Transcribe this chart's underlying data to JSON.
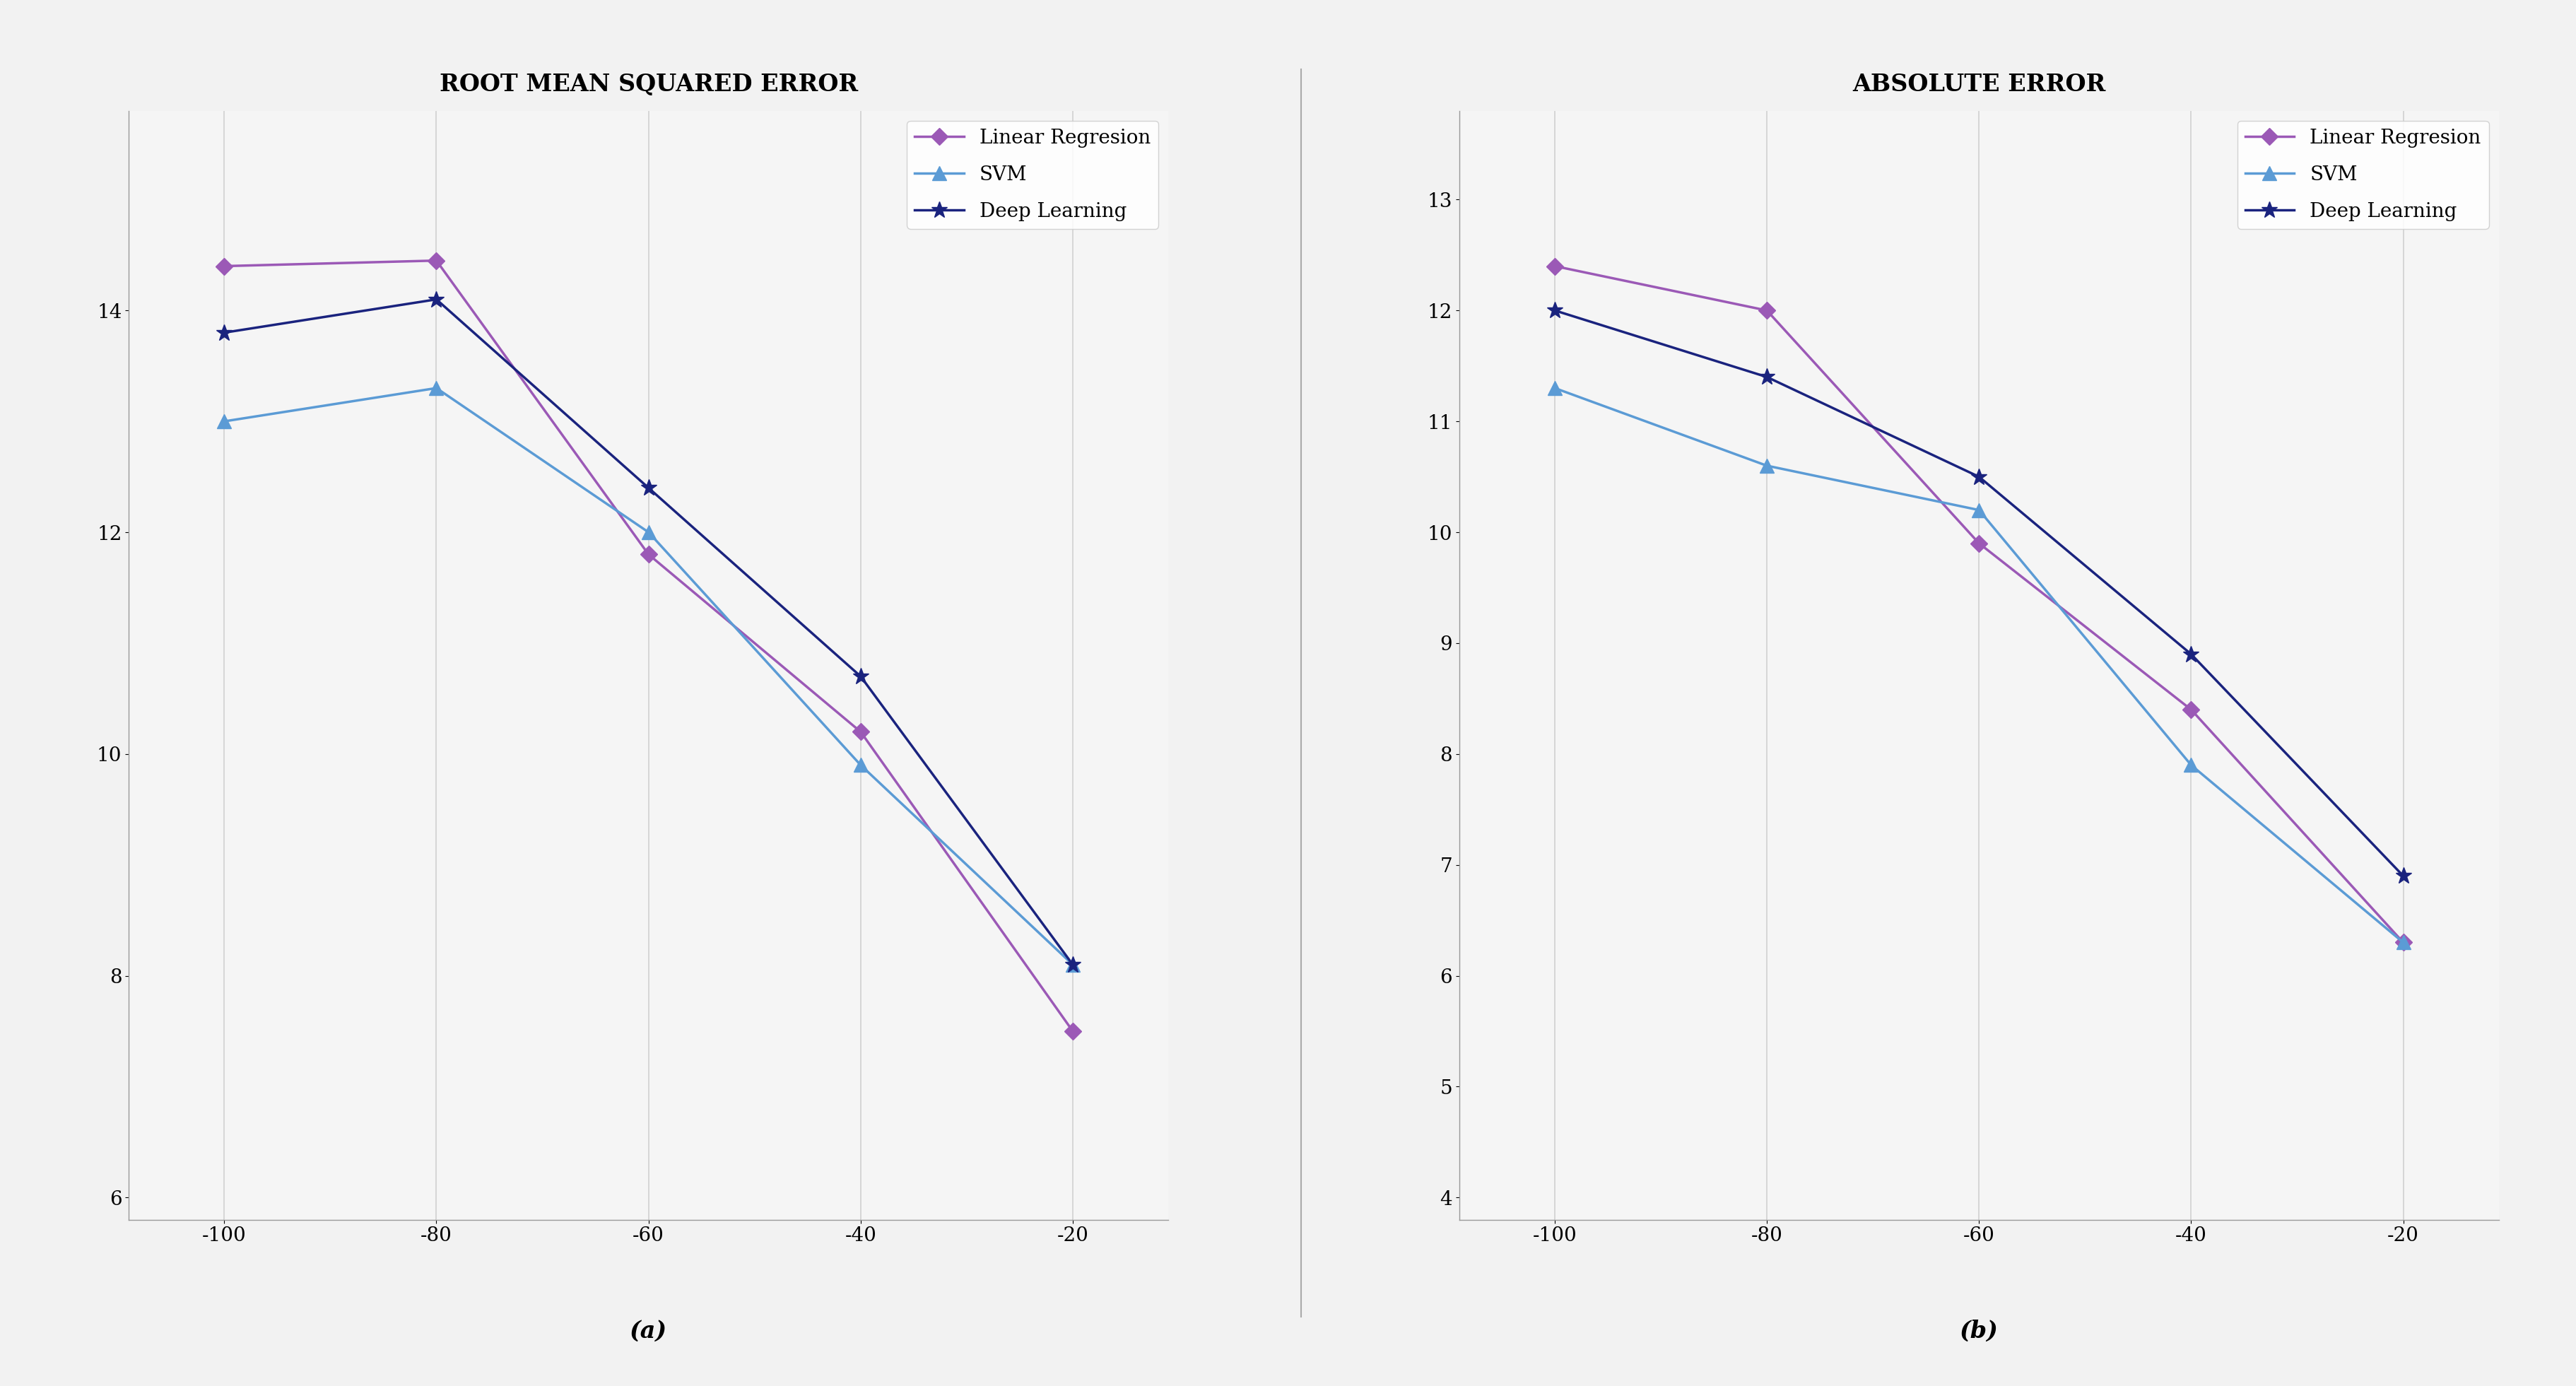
{
  "x": [
    -100,
    -80,
    -60,
    -40,
    -20
  ],
  "chart_a": {
    "title": "ROOT MEAN SQUARED ERROR",
    "linear_regression": [
      14.4,
      14.45,
      11.8,
      10.2,
      7.5
    ],
    "svm": [
      13.0,
      13.3,
      12.0,
      9.9,
      8.1
    ],
    "deep_learning": [
      13.8,
      14.1,
      12.4,
      10.7,
      8.1
    ],
    "ylim": [
      5.8,
      15.8
    ],
    "yticks": [
      6,
      8,
      10,
      12,
      14
    ]
  },
  "chart_b": {
    "title": "ABSOLUTE ERROR",
    "linear_regression": [
      12.4,
      12.0,
      9.9,
      8.4,
      6.3
    ],
    "svm": [
      11.3,
      10.6,
      10.2,
      7.9,
      6.3
    ],
    "deep_learning": [
      12.0,
      11.4,
      10.5,
      8.9,
      6.9
    ],
    "ylim": [
      3.8,
      13.8
    ],
    "yticks": [
      4,
      5,
      6,
      7,
      8,
      9,
      10,
      11,
      12,
      13
    ]
  },
  "legend_labels": [
    "Linear Regresion",
    "SVM",
    "Deep Learning"
  ],
  "color_lr": "#9b59b6",
  "color_svm": "#5b9bd5",
  "color_dl": "#1a237e",
  "subtitle_a": "(a)",
  "subtitle_b": "(b)",
  "bg_color": "#f2f2f2",
  "plot_bg": "#f5f5f5",
  "grid_color": "#d0d0d0",
  "title_fontsize": 24,
  "tick_fontsize": 20,
  "legend_fontsize": 20,
  "subtitle_fontsize": 24
}
